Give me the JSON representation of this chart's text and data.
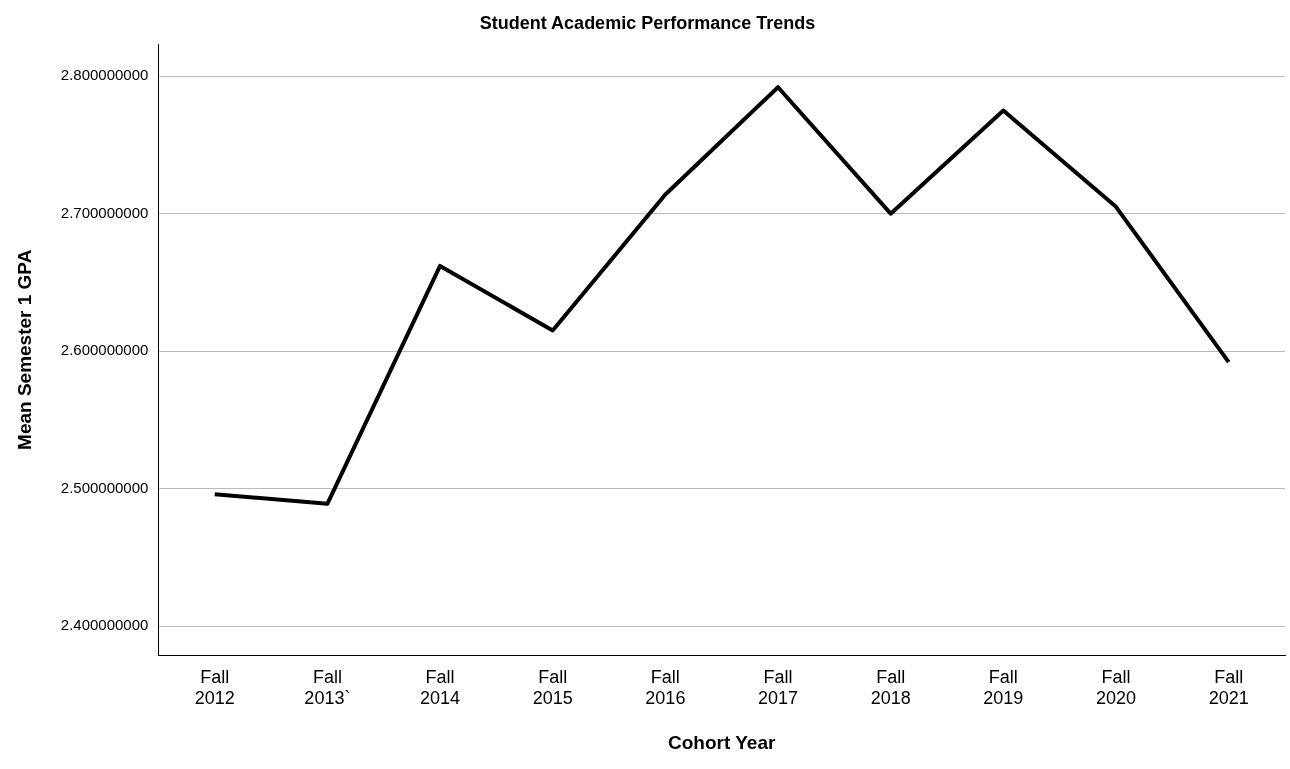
{
  "chart_data": {
    "type": "line",
    "title": "Student Academic Performance Trends",
    "xlabel": "Cohort Year",
    "ylabel": "Mean Semester 1 GPA",
    "categories": [
      "Fall 2012",
      "Fall 2013`",
      "Fall 2014",
      "Fall 2015",
      "Fall 2016",
      "Fall 2017",
      "Fall 2018",
      "Fall 2019",
      "Fall 2020",
      "Fall 2021"
    ],
    "series": [
      {
        "color": "#000000",
        "values": [
          2.496,
          2.489,
          2.662,
          2.615,
          2.714,
          2.792,
          2.7,
          2.775,
          2.705,
          2.592
        ]
      }
    ],
    "ylim": [
      2.379,
      2.823
    ],
    "yticks": [
      {
        "value": 2.4,
        "label": "2.400000000"
      },
      {
        "value": 2.5,
        "label": "2.500000000"
      },
      {
        "value": 2.6,
        "label": "2.600000000"
      },
      {
        "value": 2.7,
        "label": "2.700000000"
      },
      {
        "value": 2.8,
        "label": "2.800000000"
      }
    ],
    "grid": "y",
    "legend": false,
    "marker": "none",
    "line_style": "solid"
  }
}
